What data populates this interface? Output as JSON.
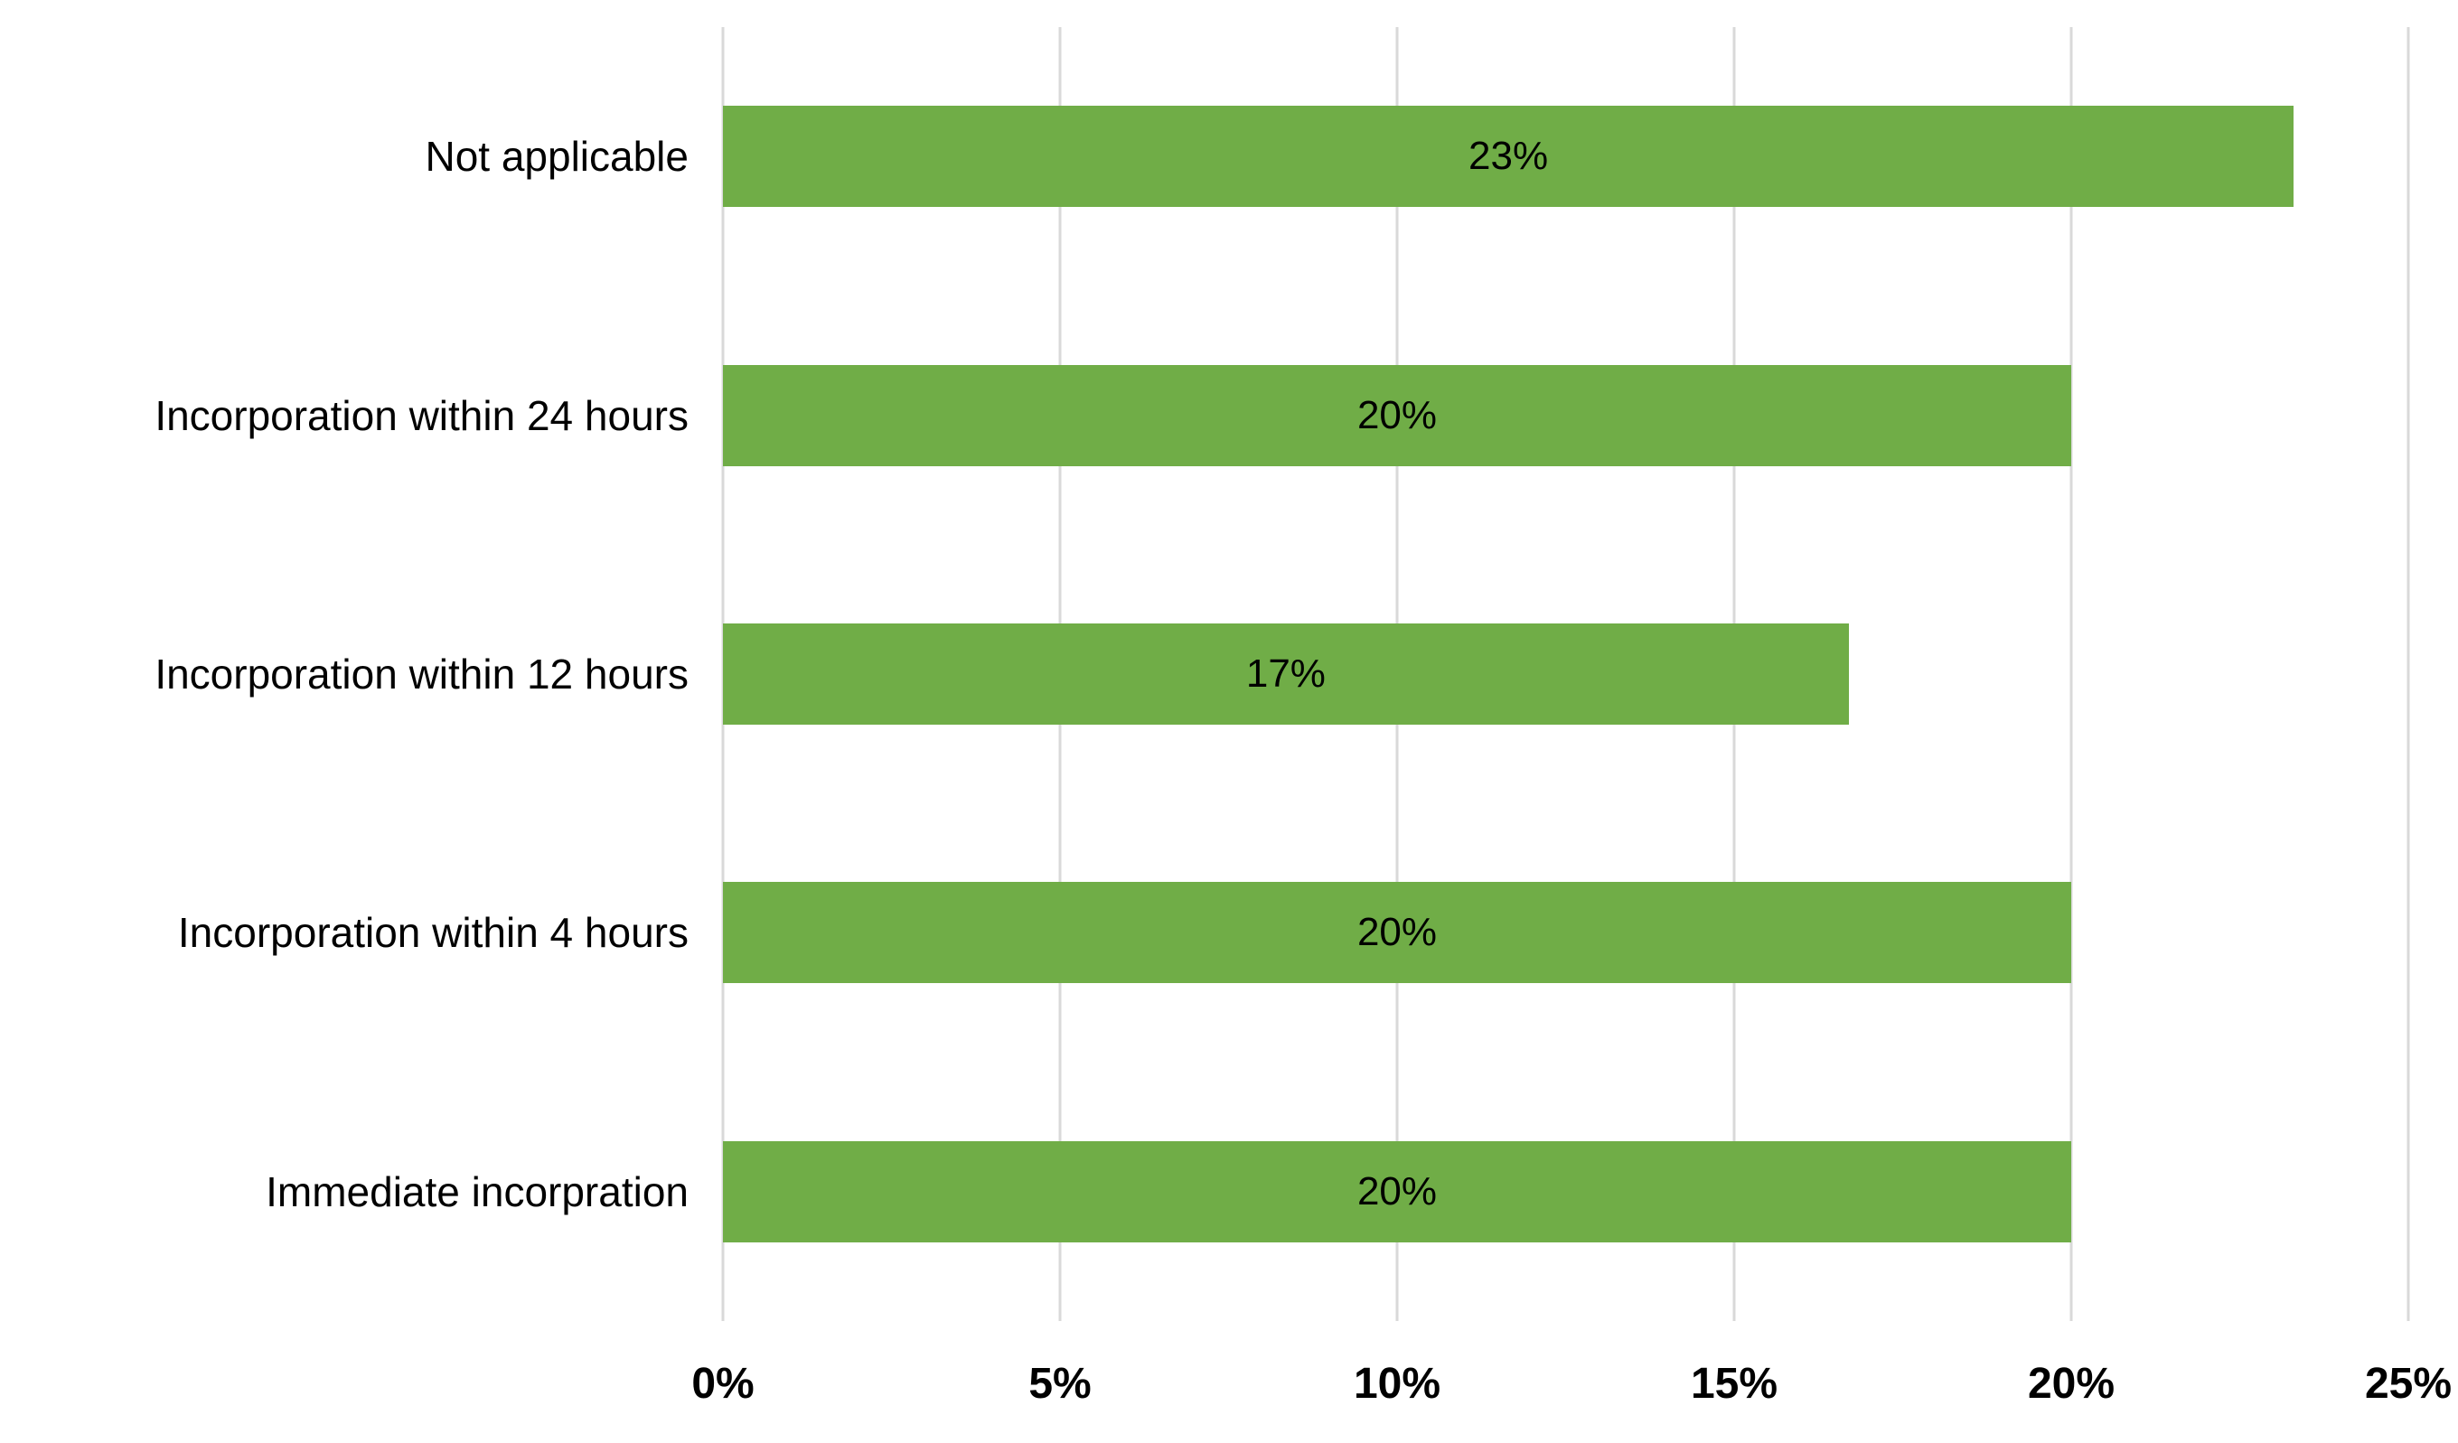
{
  "chart_data": {
    "type": "bar",
    "orientation": "horizontal",
    "title": "",
    "xlabel": "",
    "ylabel": "",
    "categories": [
      "Not applicable",
      "Incorporation within 24 hours",
      "Incorporation within 12 hours",
      "Incorporation within 4 hours",
      "Immediate incorpration"
    ],
    "values": [
      23,
      20,
      17,
      20,
      20
    ],
    "values_precise": [
      23.3,
      20,
      16.7,
      20,
      20
    ],
    "value_labels": [
      "23%",
      "20%",
      "17%",
      "20%",
      "20%"
    ],
    "xlim": [
      0,
      25
    ],
    "x_ticks": [
      "0%",
      "5%",
      "10%",
      "15%",
      "20%",
      "25%"
    ],
    "x_tick_values": [
      0,
      5,
      10,
      15,
      20,
      25
    ],
    "grid": true,
    "legend": "none",
    "bar_color": "#70AD47",
    "gridline_color": "#D9D9D9",
    "background_color": "#FFFFFF",
    "text_color": "#000000"
  }
}
